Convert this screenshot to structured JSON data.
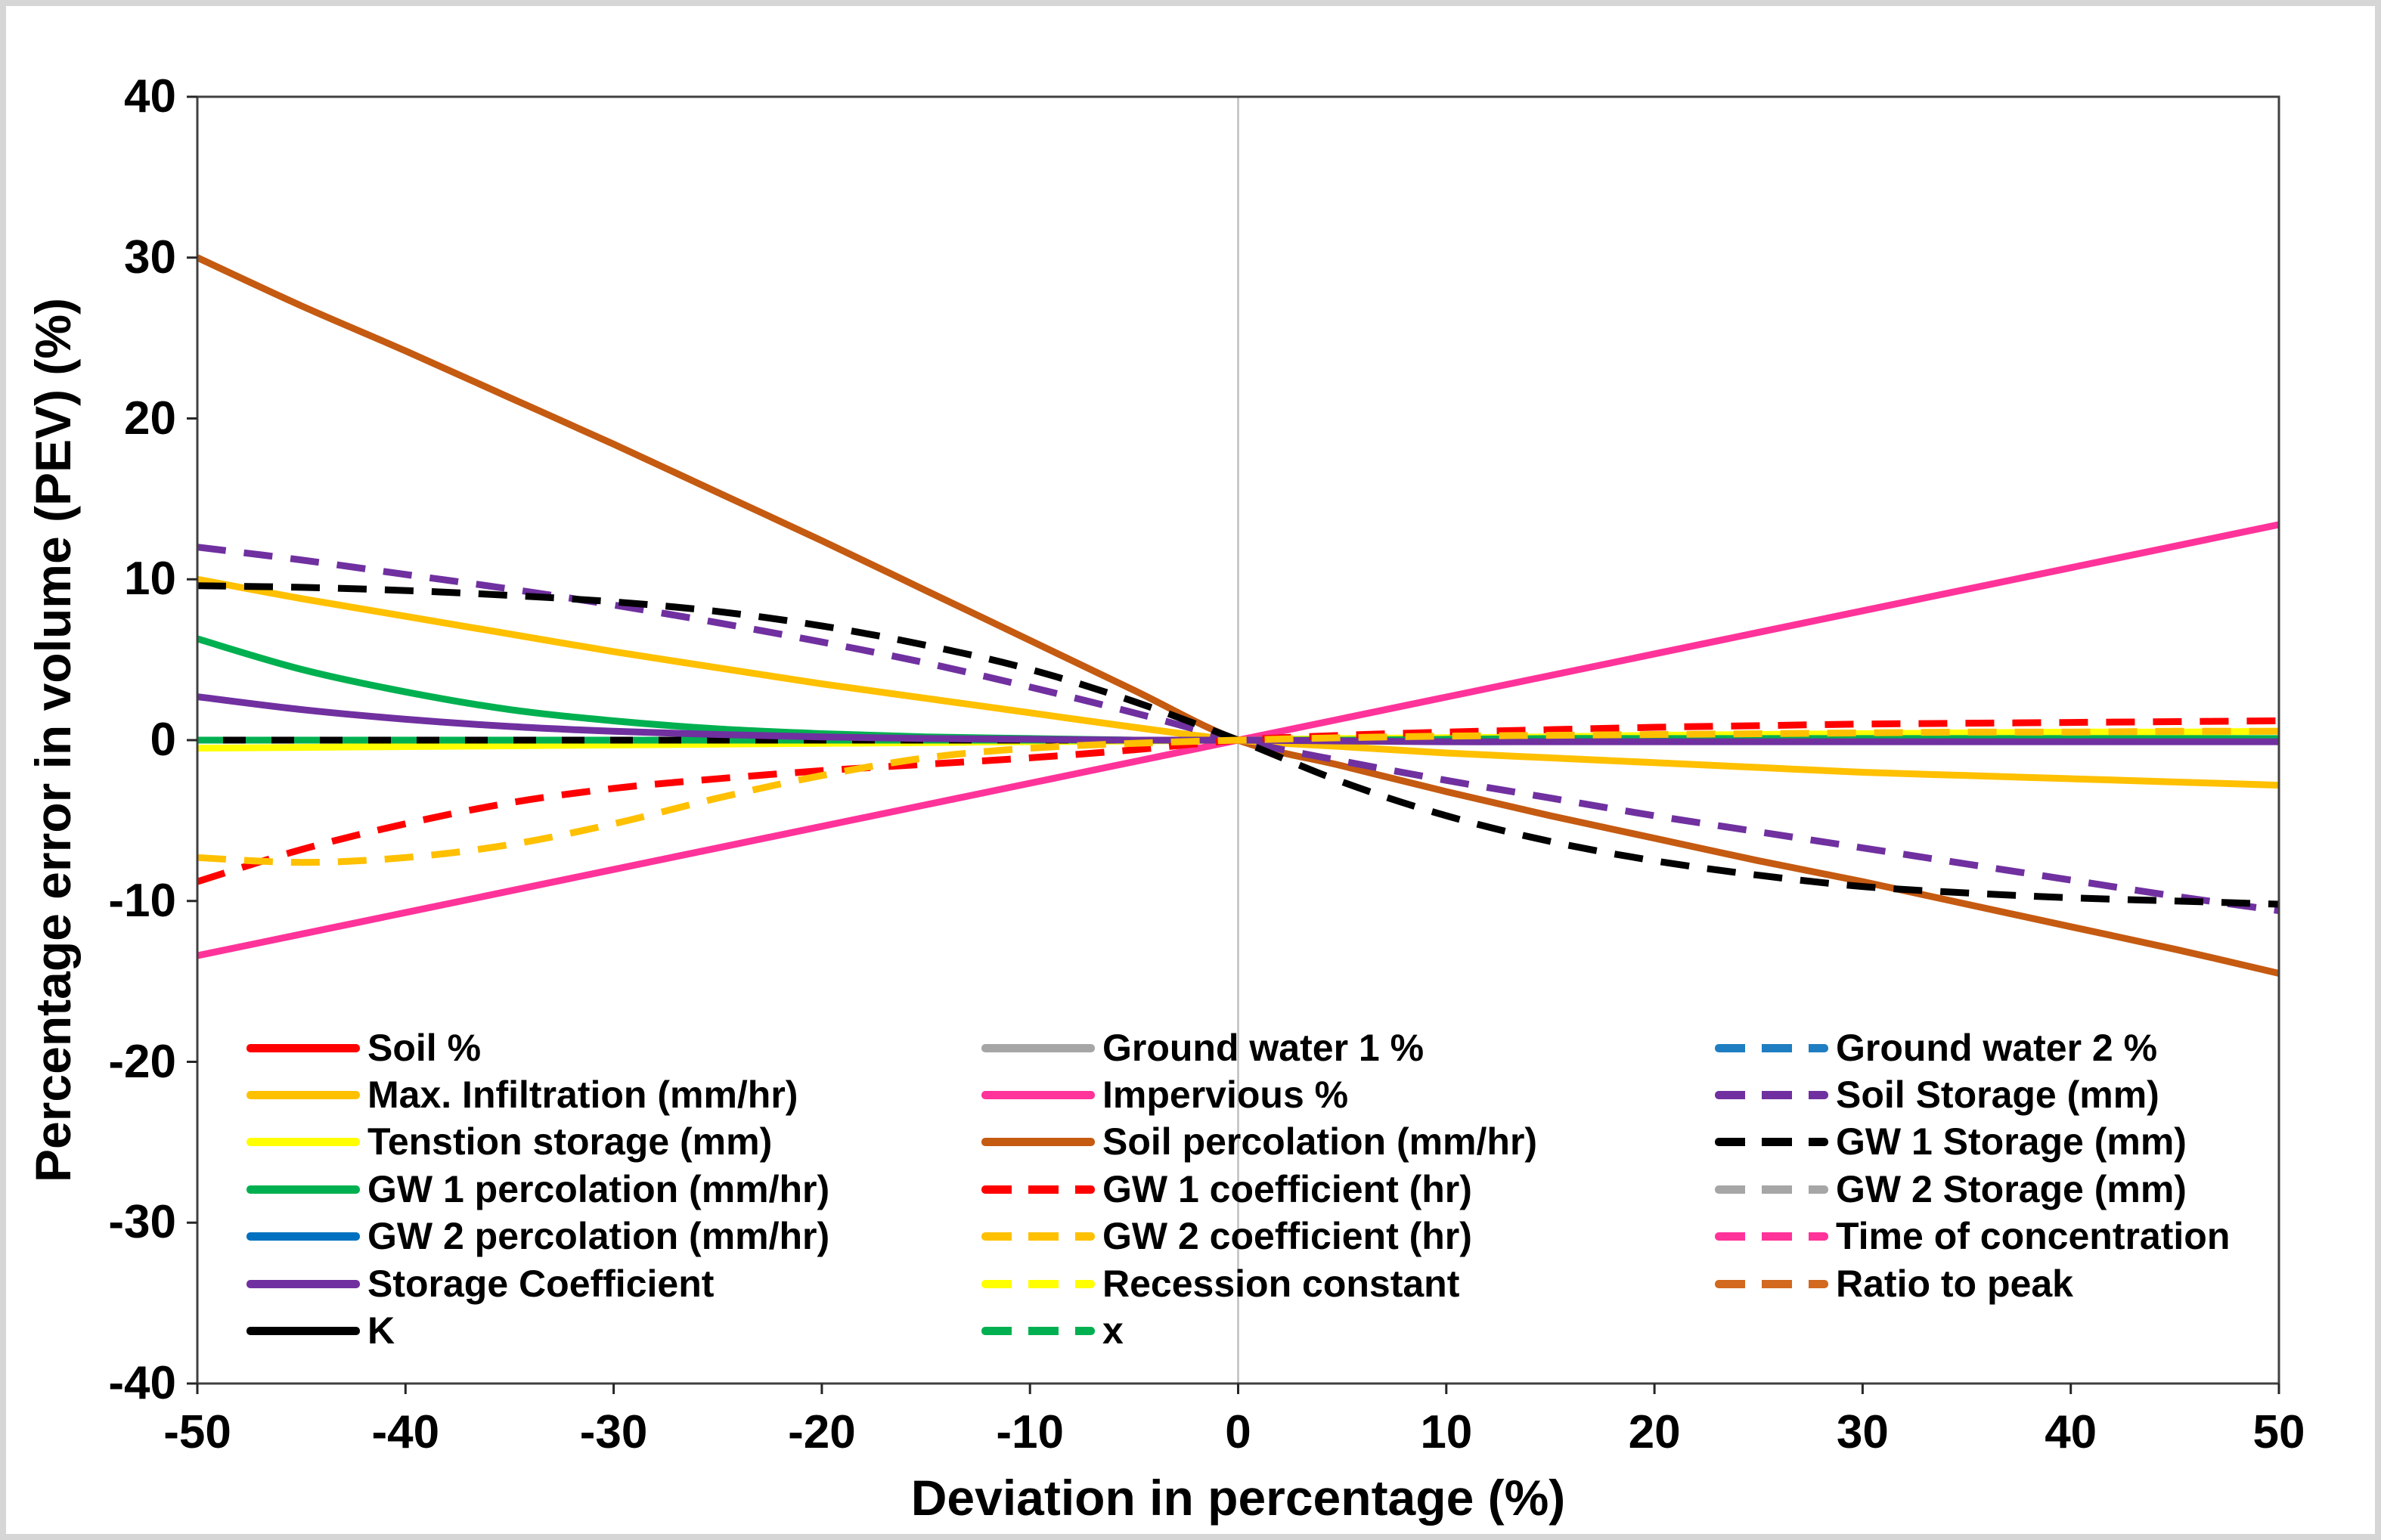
{
  "figure": {
    "background": "#ffffff",
    "border_color": "#d6d6d6",
    "frame_color": "#404040",
    "zero_gridline_color": "#bfbfbf",
    "tick_color": "#262626"
  },
  "axes": {
    "x_title": "Deviation in percentage (%)",
    "y_title": "Percentage error in volume (PEV) (%)"
  },
  "chart_data": {
    "type": "line",
    "title": "",
    "xlabel": "Deviation in percentage (%)",
    "ylabel": "Percentage error in volume (PEV) (%)",
    "xlim": [
      -50,
      50
    ],
    "ylim": [
      -40,
      40
    ],
    "x_ticks": [
      -50,
      -40,
      -30,
      -20,
      -10,
      0,
      10,
      20,
      30,
      40,
      50
    ],
    "y_ticks": [
      40,
      30,
      20,
      10,
      0,
      -10,
      -20,
      -30,
      -40
    ],
    "grid": "vertical line at x=0 only",
    "legend_position": "inside-bottom, three columns",
    "x": [
      -50,
      -45,
      -40,
      -35,
      -30,
      -25,
      -20,
      -15,
      -10,
      -5,
      0,
      5,
      10,
      15,
      20,
      25,
      30,
      35,
      40,
      45,
      50
    ],
    "series": [
      {
        "key": "soil_pct",
        "name": "Soil %",
        "color": "#FF0000",
        "style": "solid",
        "values": [
          0,
          0,
          0,
          0,
          0,
          0,
          0,
          0,
          0,
          0,
          0,
          0,
          0,
          0,
          0,
          0,
          0,
          0,
          0,
          0,
          0
        ]
      },
      {
        "key": "ground_water_1_pct",
        "name": "Ground water 1 %",
        "color": "#A6A6A6",
        "style": "solid",
        "values": [
          0,
          0,
          0,
          0,
          0,
          0,
          0,
          0,
          0,
          0,
          0,
          0,
          0,
          0,
          0,
          0,
          0,
          0,
          0,
          0,
          0
        ]
      },
      {
        "key": "ground_water_2_pct",
        "name": "Ground water 2 %",
        "color": "#1F7EC2",
        "style": "dashed",
        "values": [
          0,
          0,
          0,
          0,
          0,
          0,
          0,
          0,
          0,
          0,
          0,
          0,
          0,
          0,
          0,
          0,
          0,
          0,
          0,
          0,
          0
        ]
      },
      {
        "key": "gw2_storage",
        "name": "GW 2 Storage (mm)",
        "color": "#A6A6A6",
        "style": "dashed",
        "values": [
          0,
          0,
          0,
          0,
          0,
          0,
          0,
          0,
          0,
          0,
          0,
          0,
          0,
          0,
          0,
          0,
          0,
          0,
          0,
          0,
          0
        ]
      },
      {
        "key": "time_of_concentration",
        "name": "Time of concentration",
        "color": "#FF3399",
        "style": "dashed",
        "values": [
          0,
          0,
          0,
          0,
          0,
          0,
          0,
          0,
          0,
          0,
          0,
          0,
          0,
          0,
          0,
          0,
          0,
          0,
          0,
          0,
          0
        ]
      },
      {
        "key": "ratio_to_peak",
        "name": "Ratio to peak",
        "color": "#D2691E",
        "style": "dashed",
        "values": [
          0,
          0,
          0,
          0,
          0,
          0,
          0,
          0,
          0,
          0,
          0,
          0,
          0,
          0,
          0,
          0,
          0,
          0,
          0,
          0,
          0
        ]
      },
      {
        "key": "recession_constant",
        "name": "Recession constant",
        "color": "#FFFF00",
        "style": "dashed",
        "values": [
          0,
          0,
          0,
          0,
          0,
          0,
          0,
          0,
          0,
          0,
          0,
          0,
          0,
          0,
          0,
          0,
          0,
          0,
          0,
          0,
          0
        ]
      },
      {
        "key": "gw2_percolation",
        "name": "GW 2 percolation (mm/hr)",
        "color": "#0070C0",
        "style": "solid",
        "values": [
          0,
          0,
          0,
          0,
          0,
          0,
          0,
          0,
          0,
          0,
          0,
          0,
          0,
          0,
          0,
          0,
          0,
          0,
          0,
          0,
          0
        ]
      },
      {
        "key": "tension_storage",
        "name": "Tenstion storage (mm)",
        "color": "#FFFF00",
        "style": "solid",
        "values": [
          -0.5,
          -0.45,
          -0.4,
          -0.35,
          -0.3,
          -0.25,
          -0.2,
          -0.15,
          -0.1,
          -0.05,
          0,
          0.1,
          0.15,
          0.2,
          0.3,
          0.35,
          0.4,
          0.45,
          0.5,
          0.5,
          0.55
        ]
      },
      {
        "key": "k",
        "name": "K",
        "color": "#000000",
        "style": "solid",
        "values": [
          0,
          0,
          0,
          0,
          0,
          0,
          0,
          0,
          0,
          0,
          0,
          0,
          0,
          0,
          0,
          0,
          0,
          0,
          0,
          0,
          0
        ]
      },
      {
        "key": "x_series",
        "name": "x",
        "color": "#00B050",
        "style": "dashed",
        "values": [
          0,
          0,
          0,
          0,
          0,
          0,
          0,
          0,
          0,
          0,
          0,
          0,
          0,
          0,
          0,
          0,
          0,
          0,
          0,
          0,
          0
        ]
      },
      {
        "key": "impervious_pct",
        "name": "Impervious %",
        "color": "#FF3399",
        "style": "solid",
        "values": [
          -13.4,
          -12.06,
          -10.72,
          -9.38,
          -8.04,
          -6.7,
          -5.36,
          -4.02,
          -2.68,
          -1.34,
          0,
          1.34,
          2.68,
          4.02,
          5.36,
          6.7,
          8.04,
          9.38,
          10.72,
          12.06,
          13.4
        ]
      },
      {
        "key": "soil_percolation",
        "name": "Soil percolation (mm/hr)",
        "color": "#C55A11",
        "style": "solid",
        "values": [
          30,
          27,
          24.2,
          21.3,
          18.4,
          15.4,
          12.4,
          9.3,
          6.2,
          3.1,
          0,
          -1.6,
          -3.2,
          -4.7,
          -6.1,
          -7.5,
          -8.8,
          -10.2,
          -11.6,
          -13,
          -14.5
        ]
      },
      {
        "key": "max_infiltration",
        "name": "Max. Infiltration (mm/hr)",
        "color": "#FFC000",
        "style": "solid",
        "values": [
          10,
          8.8,
          7.7,
          6.6,
          5.5,
          4.5,
          3.5,
          2.6,
          1.7,
          0.8,
          0,
          -0.4,
          -0.8,
          -1.1,
          -1.4,
          -1.7,
          -2,
          -2.2,
          -2.4,
          -2.6,
          -2.8
        ]
      },
      {
        "key": "gw1_percolation",
        "name": "GW 1 percolation (mm/hr)",
        "color": "#00B050",
        "style": "solid",
        "values": [
          6.3,
          4.4,
          3,
          1.9,
          1.2,
          0.7,
          0.4,
          0.2,
          0.1,
          0,
          0,
          0,
          0.05,
          0.1,
          0.1,
          0.1,
          0.1,
          0.1,
          0.1,
          0.1,
          0.1
        ]
      },
      {
        "key": "storage_coefficient",
        "name": "Storage Coefficient",
        "color": "#7030A0",
        "style": "solid",
        "values": [
          2.7,
          1.9,
          1.3,
          0.85,
          0.55,
          0.35,
          0.2,
          0.1,
          0.05,
          0,
          0,
          -0.05,
          -0.1,
          -0.1,
          -0.1,
          -0.1,
          -0.1,
          -0.1,
          -0.1,
          -0.1,
          -0.1
        ]
      },
      {
        "key": "soil_storage",
        "name": "Soil Storage (mm)",
        "color": "#7030A0",
        "style": "dashed",
        "values": [
          12,
          11.2,
          10.3,
          9.4,
          8.4,
          7.3,
          6.1,
          4.8,
          3.3,
          1.7,
          0,
          -1.3,
          -2.5,
          -3.6,
          -4.7,
          -5.7,
          -6.7,
          -7.7,
          -8.7,
          -9.7,
          -10.6
        ]
      },
      {
        "key": "gw1_storage",
        "name": "GW 1 Storage (mm)",
        "color": "#000000",
        "style": "dashed",
        "values": [
          9.6,
          9.5,
          9.3,
          9,
          8.6,
          8,
          7.1,
          5.9,
          4.4,
          2.4,
          0,
          -2.6,
          -4.7,
          -6.3,
          -7.5,
          -8.4,
          -9.1,
          -9.5,
          -9.8,
          -10,
          -10.2
        ]
      },
      {
        "key": "gw1_coefficient",
        "name": "GW 1 coefficient (hr)",
        "color": "#FF0000",
        "style": "dashed",
        "values": [
          -8.8,
          -6.8,
          -5.2,
          -3.9,
          -3,
          -2.4,
          -1.9,
          -1.5,
          -1.1,
          -0.6,
          0,
          0.3,
          0.5,
          0.65,
          0.8,
          0.9,
          1,
          1.05,
          1.1,
          1.15,
          1.2
        ]
      },
      {
        "key": "gw2_coefficient",
        "name": "GW 2 coefficient (hr)",
        "color": "#FFC000",
        "style": "dashed",
        "values": [
          -7.3,
          -7.6,
          -7.3,
          -6.5,
          -5.2,
          -3.6,
          -2.2,
          -1.1,
          -0.5,
          -0.2,
          0,
          0.15,
          0.25,
          0.3,
          0.35,
          0.4,
          0.45,
          0.5,
          0.5,
          0.55,
          0.55
        ]
      }
    ],
    "legend_columns": [
      [
        "soil_pct",
        "max_infiltration",
        "tension_storage",
        "gw1_percolation",
        "gw2_percolation",
        "storage_coefficient",
        "k"
      ],
      [
        "ground_water_1_pct",
        "impervious_pct",
        "soil_percolation",
        "gw1_coefficient",
        "gw2_coefficient",
        "recession_constant",
        "x_series"
      ],
      [
        "ground_water_2_pct",
        "soil_storage",
        "gw1_storage",
        "gw2_storage",
        "time_of_concentration",
        "ratio_to_peak"
      ]
    ]
  }
}
